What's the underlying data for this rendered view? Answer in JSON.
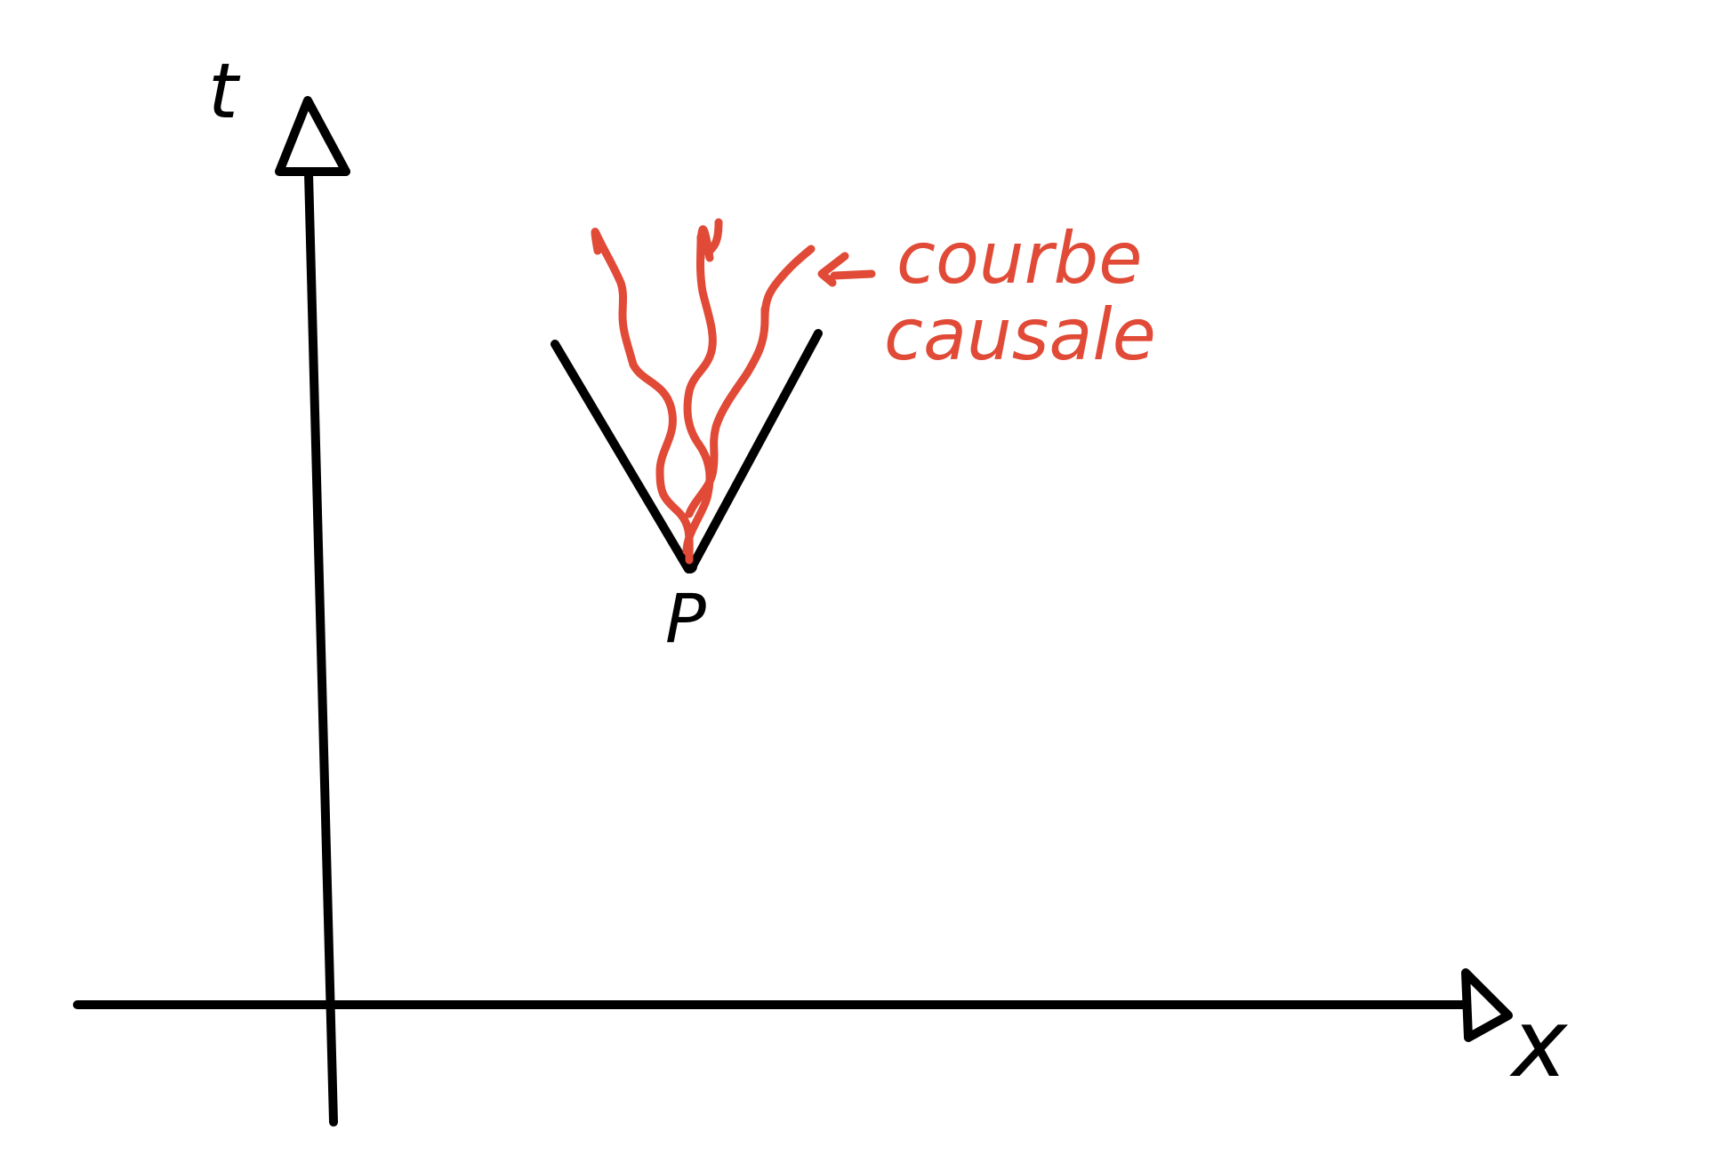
{
  "axes": {
    "x_label": "x",
    "t_label": "t"
  },
  "event": {
    "label": "P"
  },
  "annotation": {
    "lines": [
      "courbe",
      "causale"
    ]
  },
  "colors": {
    "ink": "#000000",
    "accent": "#e04a36"
  }
}
